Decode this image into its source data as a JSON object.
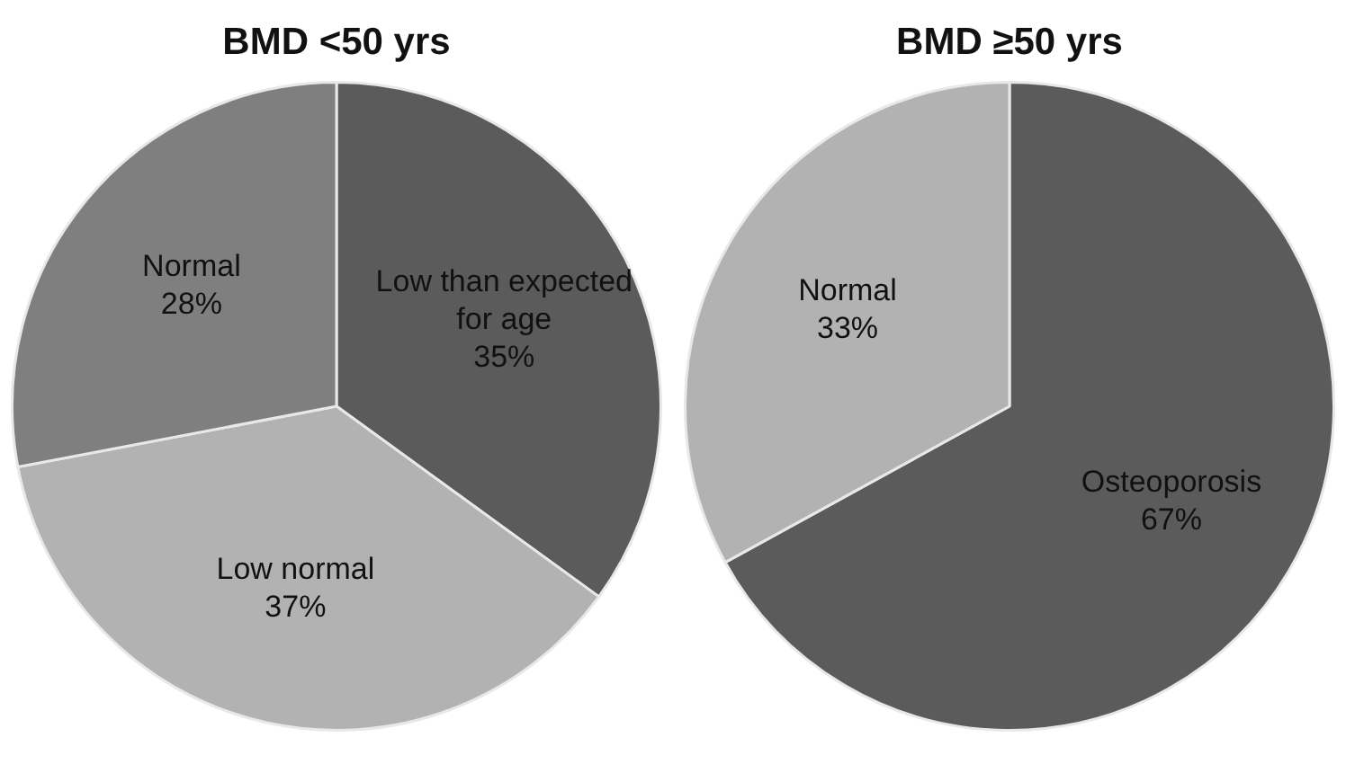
{
  "chart_data": [
    {
      "type": "pie",
      "title": "BMD <50 yrs",
      "categories": [
        "Low than expected for age",
        "Low normal",
        "Normal"
      ],
      "values": [
        35,
        37,
        28
      ],
      "value_labels": [
        "35%",
        "37%",
        "28%"
      ],
      "colors": [
        "#5b5b5b",
        "#b2b2b2",
        "#7f7f7f"
      ]
    },
    {
      "type": "pie",
      "title": "BMD ≥50 yrs",
      "categories": [
        "Osteoporosis",
        "Normal"
      ],
      "values": [
        67,
        33
      ],
      "value_labels": [
        "67%",
        "33%"
      ],
      "colors": [
        "#5b5b5b",
        "#b2b2b2"
      ]
    }
  ]
}
